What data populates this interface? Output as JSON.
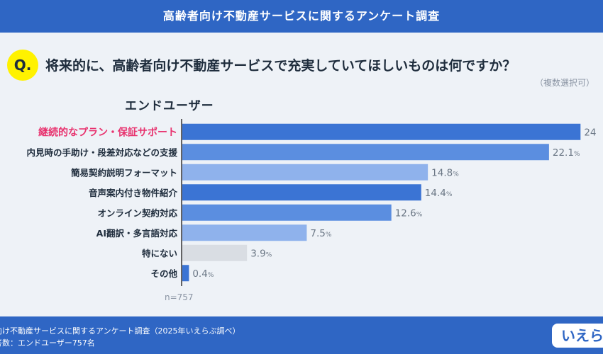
{
  "header": {
    "title": "高齢者向け不動産サービスに関するアンケート調査"
  },
  "question": {
    "badge": "Q.",
    "text": "将来的に、高齢者向け不動産サービスで充実していてほしいものは何ですか？",
    "note": "（複数選択可）"
  },
  "segment": "エンドユーザー",
  "chart_data": {
    "type": "bar",
    "orientation": "horizontal",
    "categories": [
      "継続的なプラン・保証サポート",
      "内見時の手助け・段差対応などの支援",
      "簡易契約説明フォーマット",
      "音声案内付き物件紹介",
      "オンライン契約対応",
      "AI翻訳・多言語対応",
      "特にない",
      "その他"
    ],
    "values": [
      24,
      22.1,
      14.8,
      14.4,
      12.6,
      7.5,
      3.9,
      0.4
    ],
    "value_labels": [
      "24",
      "22.1",
      "14.8",
      "14.4",
      "12.6",
      "7.5",
      "3.9",
      "0.4"
    ],
    "unit": "%",
    "bar_colors": [
      "#3b74d4",
      "#5b8ee0",
      "#8fb2ec",
      "#3b74d4",
      "#5b8ee0",
      "#8fb2ec",
      "#d9dde3",
      "#3b74d4"
    ],
    "highlight_color": "#e8336f",
    "highlight_index": 0,
    "xlim": [
      0,
      24.2
    ],
    "grid": false,
    "n_label": "n=757"
  },
  "footer": {
    "line1": "向け不動産サービスに関するアンケート調査（2025年いえらぶ調べ）",
    "line2": "答数：エンドユーザー757名",
    "logo": "いえら"
  }
}
